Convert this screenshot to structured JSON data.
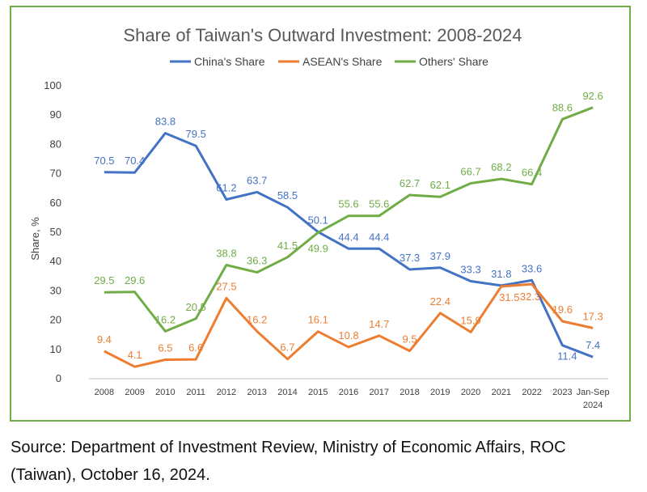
{
  "chart_data": {
    "type": "line",
    "title": "Share of Taiwan's Outward Investment: 2008-2024",
    "ylabel": "Share, %",
    "xlabel": "",
    "ylim": [
      0,
      100
    ],
    "y_ticks": [
      0,
      10,
      20,
      30,
      40,
      50,
      60,
      70,
      80,
      90,
      100
    ],
    "grid": false,
    "legend_position": "top",
    "categories": [
      "2008",
      "2009",
      "2010",
      "2011",
      "2012",
      "2013",
      "2014",
      "2015",
      "2016",
      "2017",
      "2018",
      "2019",
      "2020",
      "2021",
      "2022",
      "2023",
      "Jan-Sep 2024"
    ],
    "series": [
      {
        "name": "China's Share",
        "color": "#4472c4",
        "values": [
          70.5,
          70.4,
          83.8,
          79.5,
          61.2,
          63.7,
          58.5,
          50.1,
          44.4,
          44.4,
          37.3,
          37.9,
          33.3,
          31.8,
          33.6,
          11.4,
          7.4
        ]
      },
      {
        "name": "ASEAN's Share",
        "color": "#ed7d31",
        "values": [
          9.4,
          4.1,
          6.5,
          6.6,
          27.5,
          16.2,
          6.7,
          16.1,
          10.8,
          14.7,
          9.5,
          22.4,
          15.9,
          31.5,
          32.3,
          19.6,
          17.3
        ]
      },
      {
        "name": "Others' Share",
        "color": "#70ad47",
        "values": [
          29.5,
          29.6,
          16.2,
          20.5,
          38.8,
          36.3,
          41.5,
          49.9,
          55.6,
          55.6,
          62.7,
          62.1,
          66.7,
          68.2,
          66.4,
          88.6,
          92.6
        ]
      }
    ]
  },
  "source": "Source: Department of Investment Review, Ministry of Economic Affairs, ROC (Taiwan), October 16, 2024."
}
